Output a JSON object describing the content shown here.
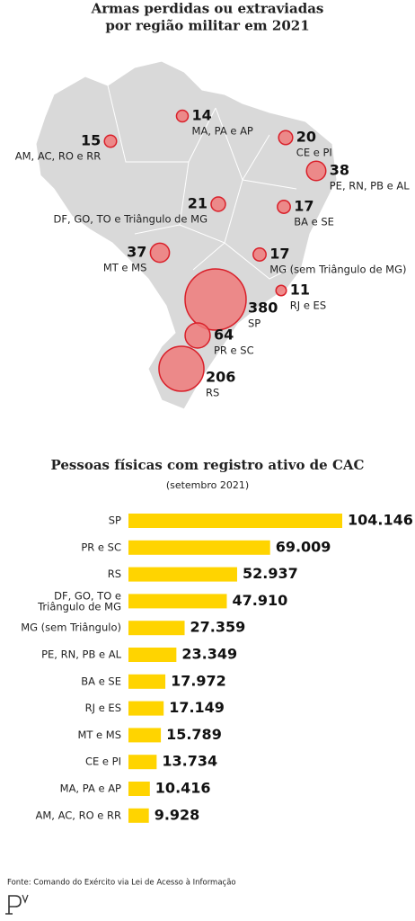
{
  "chart_data": [
    {
      "type": "bubble-map",
      "title": "Armas perdidas ou extraviadas\npor região militar em 2021",
      "categories": [
        "AM, AC, RO e RR",
        "MA, PA e AP",
        "CE e PI",
        "PE, RN, PB e AL",
        "DF, GO, TO e Triângulo de MG",
        "BA e SE",
        "MT e MS",
        "MG (sem Triângulo de MG)",
        "SP",
        "RJ e ES",
        "PR e SC",
        "RS"
      ],
      "values": [
        15,
        14,
        20,
        38,
        21,
        17,
        37,
        17,
        380,
        11,
        64,
        206
      ],
      "color": "#ee7a7a"
    },
    {
      "type": "bar",
      "orientation": "horizontal",
      "title": "Pessoas físicas com registro ativo de CAC",
      "subtitle": "(setembro 2021)",
      "categories": [
        "SP",
        "PR e SC",
        "RS",
        "DF, GO, TO e\nTriângulo de MG",
        "MG (sem Triângulo)",
        "PE, RN, PB e AL",
        "BA e SE",
        "RJ e ES",
        "MT e MS",
        "CE e PI",
        "MA, PA e AP",
        "AM, AC, RO e RR"
      ],
      "values": [
        104146,
        69009,
        52937,
        47910,
        27359,
        23349,
        17972,
        17149,
        15789,
        13734,
        10416,
        9928
      ],
      "value_labels": [
        "104.146",
        "69.009",
        "52.937",
        "47.910",
        "27.359",
        "23.349",
        "17.972",
        "17.149",
        "15.789",
        "13.734",
        "10.416",
        "9.928"
      ],
      "color": "#ffd400"
    }
  ],
  "source": "Fonte: Comando do Exército via Lei de Acesso à Informação"
}
